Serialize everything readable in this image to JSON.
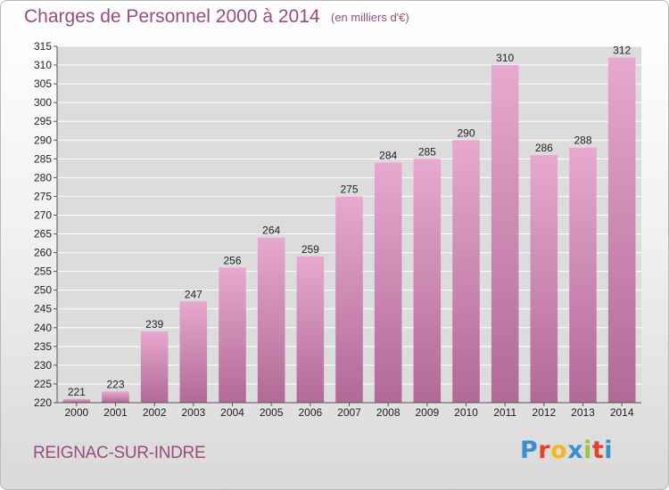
{
  "title": "Charges de Personnel 2000 à 2014",
  "subtitle": "(en milliers d'€)",
  "commune": "REIGNAC-SUR-INDRE",
  "logo": {
    "letters": [
      "P",
      "r",
      "o",
      "x",
      "i",
      "t",
      "i"
    ],
    "colors": [
      "#3a8fd0",
      "#e8402a",
      "#f2b81c",
      "#3a8fd0",
      "#9bc43b",
      "#e8402a",
      "#3a8fd0"
    ]
  },
  "colors": {
    "bar_top": "#e8a8cf",
    "bar_bottom": "#b06a95",
    "grid": "#ffffff",
    "text": "#9a4c7c"
  },
  "chart_data": {
    "type": "bar",
    "categories": [
      "2000",
      "2001",
      "2002",
      "2003",
      "2004",
      "2005",
      "2006",
      "2007",
      "2008",
      "2009",
      "2010",
      "2011",
      "2012",
      "2013",
      "2014"
    ],
    "values": [
      221,
      223,
      239,
      247,
      256,
      264,
      259,
      275,
      284,
      285,
      290,
      310,
      286,
      288,
      312
    ],
    "value_labels": [
      "221",
      "223",
      "239",
      "247",
      "256",
      "264",
      "259",
      "275",
      "284",
      "285",
      "290",
      "310",
      "286",
      "288",
      "312"
    ],
    "ylim": [
      220,
      315
    ],
    "yticks": [
      220,
      225,
      230,
      235,
      240,
      245,
      250,
      255,
      260,
      265,
      270,
      275,
      280,
      285,
      290,
      295,
      300,
      305,
      310,
      315
    ],
    "ytick_labels": [
      "220",
      "225",
      "230",
      "235",
      "240",
      "245",
      "250",
      "255",
      "260",
      "265",
      "270",
      "275",
      "280",
      "285",
      "290",
      "295",
      "300",
      "305",
      "310",
      "315"
    ],
    "grid": true,
    "xlabel": "",
    "ylabel": ""
  }
}
